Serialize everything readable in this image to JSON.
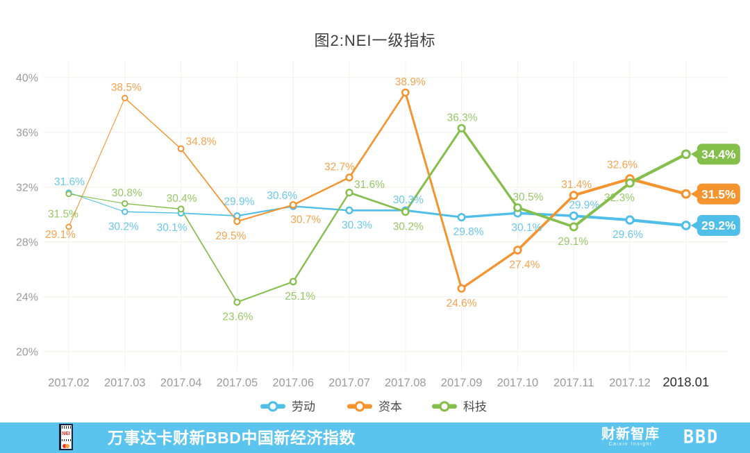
{
  "page": {
    "title": "图2:NEI一级指标"
  },
  "chart_data": {
    "type": "line",
    "title": "图2:NEI一级指标",
    "categories": [
      "2017.02",
      "2017.03",
      "2017.04",
      "2017.05",
      "2017.06",
      "2017.07",
      "2017.08",
      "2017.09",
      "2017.10",
      "2017.11",
      "2017.12",
      "2018.01"
    ],
    "ylim": [
      20,
      40
    ],
    "yticks": [
      "40%",
      "36%",
      "32%",
      "28%",
      "24%",
      "20%"
    ],
    "grid": true,
    "legend_position": "bottom",
    "x_axis_last_label_highlighted": true,
    "series": [
      {
        "name": "劳动",
        "color": "#4FBEE8",
        "label_color": "#4FBEE8",
        "values": [
          31.6,
          30.2,
          30.1,
          29.9,
          30.6,
          30.3,
          30.3,
          29.8,
          30.1,
          29.9,
          29.6,
          29.2
        ],
        "end_badge_label": "29.2%",
        "label_layout": [
          [
            "a",
            1
          ],
          [
            "b",
            -2
          ],
          [
            "b",
            -13
          ],
          [
            "a",
            3,
            -5
          ],
          [
            "a",
            -16
          ],
          [
            "b",
            11
          ],
          [
            "a",
            4
          ],
          [
            "b",
            10
          ],
          [
            "b",
            13
          ],
          [
            "a",
            15
          ],
          [
            "b",
            -3
          ]
        ]
      },
      {
        "name": "资本",
        "color": "#F5932F",
        "label_color": "#F5932F",
        "values": [
          29.1,
          38.5,
          34.8,
          29.5,
          30.7,
          32.7,
          38.9,
          24.6,
          27.4,
          31.4,
          32.6,
          31.5
        ],
        "end_badge_label": "31.5%",
        "label_layout": [
          [
            "b",
            -12,
            -10
          ],
          [
            "a",
            2
          ],
          [
            "a",
            29,
            5
          ],
          [
            "b",
            -9
          ],
          [
            "b",
            18
          ],
          [
            "a",
            -14
          ],
          [
            "a",
            7
          ],
          [
            "b",
            0
          ],
          [
            "b",
            10
          ],
          [
            "a",
            4
          ],
          [
            "a",
            -11,
            -5
          ]
        ]
      },
      {
        "name": "科技",
        "color": "#84BE4B",
        "label_color": "#84BE4B",
        "values": [
          31.5,
          30.8,
          30.4,
          23.6,
          25.1,
          31.6,
          30.2,
          36.3,
          30.5,
          29.1,
          32.3,
          34.4
        ],
        "end_badge_label": "34.4%",
        "label_layout": [
          [
            "b",
            -8,
            8
          ],
          [
            "a",
            3
          ],
          [
            "a",
            1
          ],
          [
            "b",
            1
          ],
          [
            "b",
            10
          ],
          [
            "a",
            29,
            4
          ],
          [
            "b",
            4
          ],
          [
            "a",
            1
          ],
          [
            "a",
            15
          ],
          [
            "b",
            -1
          ],
          [
            "b",
            -15
          ]
        ]
      }
    ]
  },
  "legend": {
    "items": [
      "劳动",
      "资本",
      "科技"
    ]
  },
  "footer": {
    "banner_color": "#5AC4EF",
    "logo_text": "NEI",
    "banner_title": "万事达卡财新BBD中国新经济指数",
    "brand_caixin": "财新智库",
    "brand_caixin_sub": "Caixin Insight",
    "brand_bbd": "BBD"
  }
}
